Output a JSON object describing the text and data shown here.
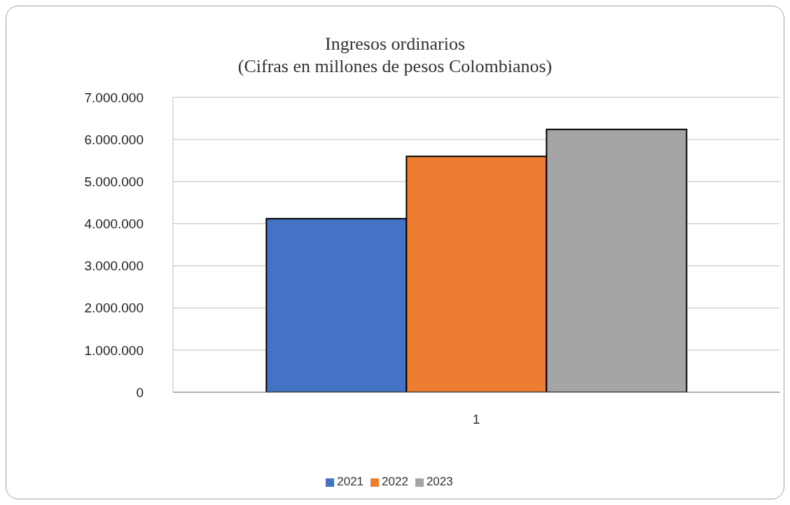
{
  "chart_data": {
    "type": "bar",
    "title": "Ingresos ordinarios",
    "subtitle": "(Cifras en millones de pesos Colombianos)",
    "categories": [
      "1"
    ],
    "series": [
      {
        "name": "2021",
        "color": "#4472c4",
        "values": [
          4120000
        ]
      },
      {
        "name": "2022",
        "color": "#ed7d31",
        "values": [
          5600000
        ]
      },
      {
        "name": "2023",
        "color": "#a5a5a5",
        "values": [
          6240000
        ]
      }
    ],
    "ylim": [
      0,
      7000000
    ],
    "yticks": [
      {
        "value": 0,
        "label": "0"
      },
      {
        "value": 1000000,
        "label": "1.000.000"
      },
      {
        "value": 2000000,
        "label": "2.000.000"
      },
      {
        "value": 3000000,
        "label": "3.000.000"
      },
      {
        "value": 4000000,
        "label": "4.000.000"
      },
      {
        "value": 5000000,
        "label": "5.000.000"
      },
      {
        "value": 6000000,
        "label": "6.000.000"
      },
      {
        "value": 7000000,
        "label": "7.000.000"
      }
    ],
    "grid": "y",
    "legend": "bottom"
  }
}
